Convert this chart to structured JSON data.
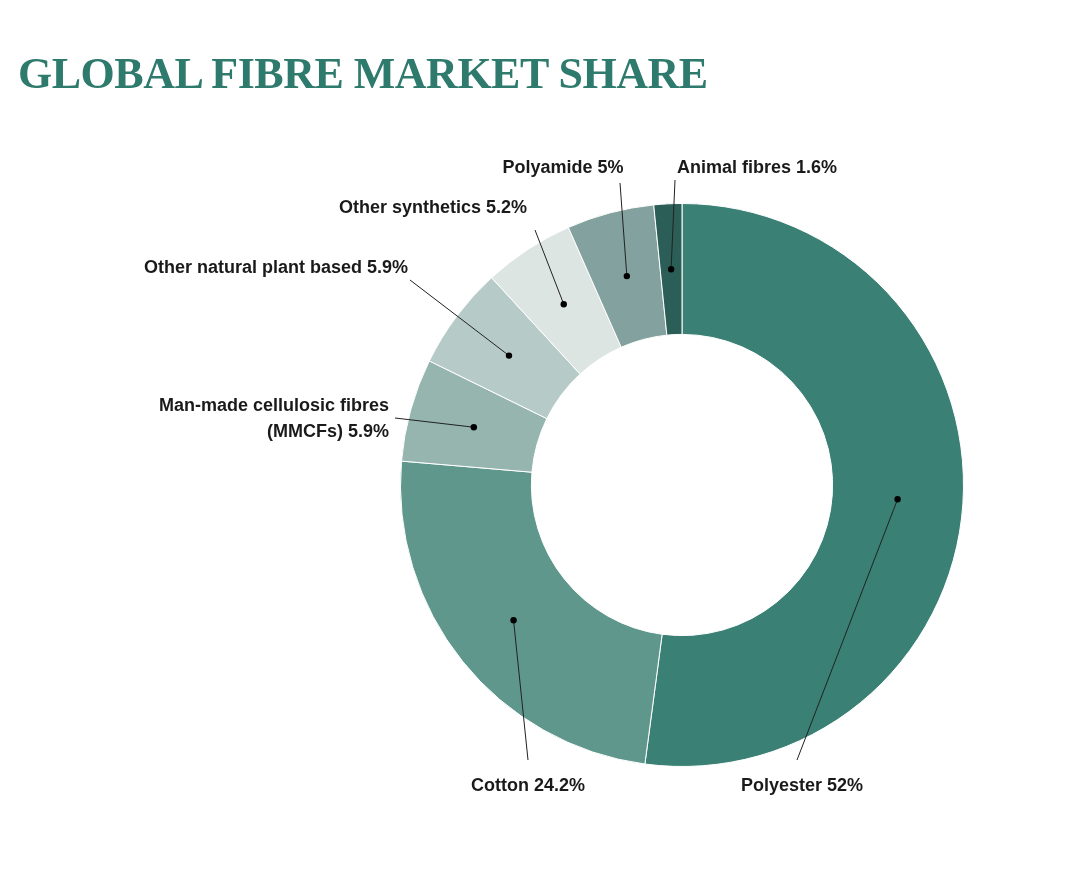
{
  "chart_data": {
    "type": "donut",
    "title": "GLOBAL FIBRE MARKET SHARE",
    "categories": [
      "Polyester",
      "Cotton",
      "Man-made cellulosic fibres (MMCFs)",
      "Other natural plant based",
      "Other synthetics",
      "Polyamide",
      "Animal fibres"
    ],
    "values": [
      52,
      24.2,
      5.9,
      5.9,
      5.2,
      5,
      1.6
    ],
    "colors": [
      "#3a8074",
      "#5f978c",
      "#95b5ae",
      "#b6cbc7",
      "#dde5e3",
      "#83a19e",
      "#2b5e56"
    ],
    "value_labels": [
      "52%",
      "24.2%",
      "5.9%",
      "5.9%",
      "5.2%",
      "5%",
      "1.6%"
    ],
    "legend": false
  }
}
